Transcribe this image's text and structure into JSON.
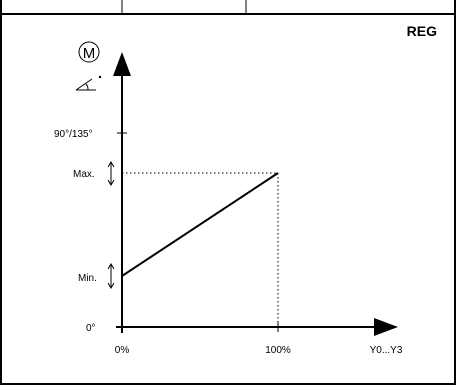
{
  "badge": "REG",
  "motor_symbol": "M",
  "y_labels": {
    "full_range": "90°/135°",
    "max": "Max.",
    "min": "Min.",
    "zero": "0°"
  },
  "x_labels": {
    "start": "0%",
    "end": "100%",
    "signal": "Y0...Y3"
  },
  "colors": {
    "line": "#000000",
    "guide": "#000000",
    "background": "#ffffff"
  }
}
